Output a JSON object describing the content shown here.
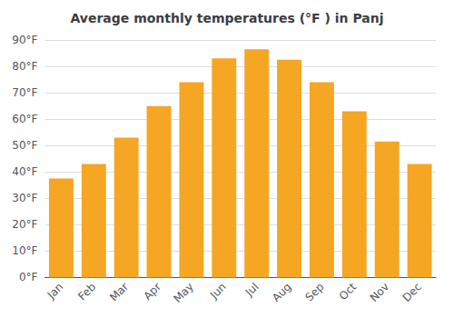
{
  "chart_data": {
    "type": "bar",
    "title": "Average monthly temperatures (°F ) in Panj",
    "categories": [
      "Jan",
      "Feb",
      "Mar",
      "Apr",
      "May",
      "Jun",
      "Jul",
      "Aug",
      "Sep",
      "Oct",
      "Nov",
      "Dec"
    ],
    "values": [
      37.5,
      43,
      53,
      65,
      74,
      83,
      86.5,
      82.5,
      74,
      63,
      51.5,
      43
    ],
    "color": "#F5A623",
    "ylim": [
      0,
      90
    ],
    "yticks": [
      {
        "value": 0,
        "label": "0°F"
      },
      {
        "value": 10,
        "label": "10°F"
      },
      {
        "value": 20,
        "label": "20°F"
      },
      {
        "value": 30,
        "label": "30°F"
      },
      {
        "value": 40,
        "label": "40°F"
      },
      {
        "value": 50,
        "label": "50°F"
      },
      {
        "value": 60,
        "label": "60°F"
      },
      {
        "value": 70,
        "label": "70°F"
      },
      {
        "value": 80,
        "label": "80°F"
      },
      {
        "value": 90,
        "label": "90°F"
      }
    ],
    "grid": true
  }
}
